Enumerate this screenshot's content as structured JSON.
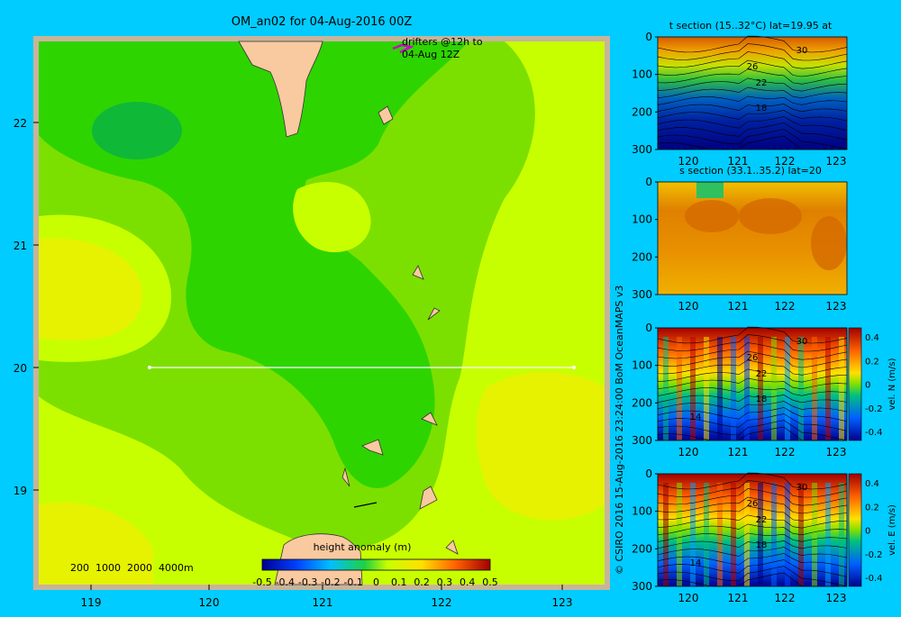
{
  "map": {
    "title": "OM_an02 for 04-Aug-2016 00Z",
    "drifters_label_line1": "drifters @12h to",
    "drifters_label_line2": "04-Aug 12Z",
    "lat_ticks": [
      "22",
      "21",
      "20",
      "19"
    ],
    "lon_ticks": [
      "119",
      "120",
      "121",
      "122",
      "123"
    ],
    "bathy_legend": "200  1000  2000  4000m",
    "section_line_lat": 20,
    "colorbar": {
      "title": "height anomaly (m)",
      "ticks": [
        "-0.5",
        "-0.4",
        "-0.3",
        "-0.2",
        "-0.1",
        "0",
        "0.1",
        "0.2",
        "0.3",
        "0.4",
        "0.5"
      ]
    },
    "colors": {
      "frame": "#c8b49a",
      "land": "#f9c9a0",
      "light_green": "#c8ff00",
      "mid_green": "#7be000",
      "green": "#2ed400",
      "dark_green": "#10b838",
      "yellow_green": "#e6f200",
      "drifter": "#cc00cc"
    }
  },
  "credit": "© CSIRO 2016   15-Aug-2016 23:24:00 BoM OceanMAPS v3",
  "sections": [
    {
      "title": "t section (15..32°C) lat=19.95 at",
      "y_ticks": [
        "0",
        "100",
        "200",
        "300"
      ],
      "x_ticks": [
        "120",
        "121",
        "122",
        "123"
      ],
      "contour_labels": [
        "30",
        "26",
        "22",
        "18"
      ],
      "has_colorbar": false
    },
    {
      "title": "s section (33.1..35.2) lat=20",
      "y_ticks": [
        "0",
        "100",
        "200",
        "300"
      ],
      "x_ticks": [
        "120",
        "121",
        "122",
        "123"
      ],
      "contour_labels": [],
      "has_colorbar": false
    },
    {
      "title": "",
      "y_ticks": [
        "0",
        "100",
        "200",
        "300"
      ],
      "x_ticks": [
        "120",
        "121",
        "122",
        "123"
      ],
      "contour_labels": [
        "30",
        "26",
        "22",
        "18",
        "14"
      ],
      "has_colorbar": true,
      "colorbar_label": "vel. N (m/s)",
      "colorbar_ticks": [
        "0.4",
        "0.2",
        "0",
        "-0.2",
        "-0.4"
      ]
    },
    {
      "title": "",
      "y_ticks": [
        "0",
        "100",
        "200",
        "300"
      ],
      "x_ticks": [
        "120",
        "121",
        "122",
        "123"
      ],
      "contour_labels": [
        "30",
        "26",
        "22",
        "18",
        "14"
      ],
      "has_colorbar": true,
      "colorbar_label": "vel. E (m/s)",
      "colorbar_ticks": [
        "0.4",
        "0.2",
        "0",
        "-0.2",
        "-0.4"
      ]
    }
  ]
}
